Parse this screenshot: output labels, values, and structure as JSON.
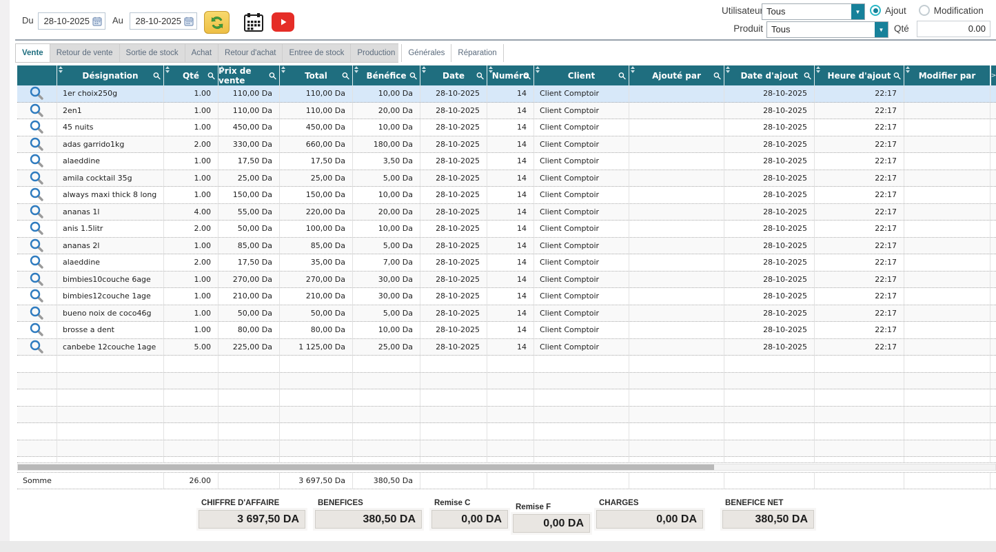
{
  "topbar": {
    "du_label": "Du",
    "au_label": "Au",
    "date_from": "28-10-2025",
    "date_to": "28-10-2025",
    "utilisateur_label": "Utilisateur",
    "utilisateur_value": "Tous",
    "produit_label": "Produit",
    "produit_value": "Tous",
    "ajout_label": "Ajout",
    "modification_label": "Modification",
    "ajout_selected": true,
    "qte_label": "Qté",
    "qte_value": "0.00"
  },
  "tabs": [
    {
      "label": "Vente",
      "active": true
    },
    {
      "label": "Retour de vente",
      "active": false
    },
    {
      "label": "Sortie de stock",
      "active": false
    },
    {
      "label": "Achat",
      "active": false
    },
    {
      "label": "Retour d'achat",
      "active": false
    },
    {
      "label": "Entree de stock",
      "active": false
    },
    {
      "label": "Production",
      "active": false
    },
    {
      "label": "Générales",
      "active": false
    },
    {
      "label": "Réparation",
      "active": false
    }
  ],
  "table": {
    "columns": [
      {
        "label": "",
        "magnifier": false
      },
      {
        "label": "Désignation",
        "magnifier": true
      },
      {
        "label": "Qté",
        "magnifier": true
      },
      {
        "label": "Prix de vente",
        "magnifier": true
      },
      {
        "label": "Total",
        "magnifier": true
      },
      {
        "label": "Bénéfice",
        "magnifier": true
      },
      {
        "label": "Date",
        "magnifier": true
      },
      {
        "label": "Numéro",
        "magnifier": true
      },
      {
        "label": "Client",
        "magnifier": true
      },
      {
        "label": "Ajouté par",
        "magnifier": true
      },
      {
        "label": "Date d'ajout",
        "magnifier": true
      },
      {
        "label": "Heure d'ajout",
        "magnifier": true
      },
      {
        "label": "Modifier par",
        "magnifier": false
      }
    ],
    "scroll_right_glyph": ">",
    "selected_row_index": 0,
    "rows": [
      [
        "1er choix250g",
        "1.00",
        "110,00 Da",
        "110,00 Da",
        "10,00 Da",
        "28-10-2025",
        "14",
        "Client Comptoir",
        "",
        "28-10-2025",
        "22:17",
        ""
      ],
      [
        "2en1",
        "1.00",
        "110,00 Da",
        "110,00 Da",
        "20,00 Da",
        "28-10-2025",
        "14",
        "Client Comptoir",
        "",
        "28-10-2025",
        "22:17",
        ""
      ],
      [
        "45 nuits",
        "1.00",
        "450,00 Da",
        "450,00 Da",
        "10,00 Da",
        "28-10-2025",
        "14",
        "Client Comptoir",
        "",
        "28-10-2025",
        "22:17",
        ""
      ],
      [
        "adas garrido1kg",
        "2.00",
        "330,00 Da",
        "660,00 Da",
        "180,00 Da",
        "28-10-2025",
        "14",
        "Client Comptoir",
        "",
        "28-10-2025",
        "22:17",
        ""
      ],
      [
        "alaeddine",
        "1.00",
        "17,50 Da",
        "17,50 Da",
        "3,50 Da",
        "28-10-2025",
        "14",
        "Client Comptoir",
        "",
        "28-10-2025",
        "22:17",
        ""
      ],
      [
        "amila cocktail 35g",
        "1.00",
        "25,00 Da",
        "25,00 Da",
        "5,00 Da",
        "28-10-2025",
        "14",
        "Client Comptoir",
        "",
        "28-10-2025",
        "22:17",
        ""
      ],
      [
        "always maxi thick 8 long",
        "1.00",
        "150,00 Da",
        "150,00 Da",
        "10,00 Da",
        "28-10-2025",
        "14",
        "Client Comptoir",
        "",
        "28-10-2025",
        "22:17",
        ""
      ],
      [
        "ananas 1l",
        "4.00",
        "55,00 Da",
        "220,00 Da",
        "20,00 Da",
        "28-10-2025",
        "14",
        "Client Comptoir",
        "",
        "28-10-2025",
        "22:17",
        ""
      ],
      [
        "anis 1.5litr",
        "2.00",
        "50,00 Da",
        "100,00 Da",
        "10,00 Da",
        "28-10-2025",
        "14",
        "Client Comptoir",
        "",
        "28-10-2025",
        "22:17",
        ""
      ],
      [
        "ananas 2l",
        "1.00",
        "85,00 Da",
        "85,00 Da",
        "5,00 Da",
        "28-10-2025",
        "14",
        "Client Comptoir",
        "",
        "28-10-2025",
        "22:17",
        ""
      ],
      [
        "alaeddine",
        "2.00",
        "17,50 Da",
        "35,00 Da",
        "7,00 Da",
        "28-10-2025",
        "14",
        "Client Comptoir",
        "",
        "28-10-2025",
        "22:17",
        ""
      ],
      [
        "bimbies10couche 6age",
        "1.00",
        "270,00 Da",
        "270,00 Da",
        "30,00 Da",
        "28-10-2025",
        "14",
        "Client Comptoir",
        "",
        "28-10-2025",
        "22:17",
        ""
      ],
      [
        "bimbies12couche 1age",
        "1.00",
        "210,00 Da",
        "210,00 Da",
        "30,00 Da",
        "28-10-2025",
        "14",
        "Client Comptoir",
        "",
        "28-10-2025",
        "22:17",
        ""
      ],
      [
        "bueno noix de coco46g",
        "1.00",
        "50,00 Da",
        "50,00 Da",
        "5,00 Da",
        "28-10-2025",
        "14",
        "Client Comptoir",
        "",
        "28-10-2025",
        "22:17",
        ""
      ],
      [
        "brosse a dent",
        "1.00",
        "80,00 Da",
        "80,00 Da",
        "10,00 Da",
        "28-10-2025",
        "14",
        "Client Comptoir",
        "",
        "28-10-2025",
        "22:17",
        ""
      ],
      [
        "canbebe 12couche 1age",
        "5.00",
        "225,00 Da",
        "1 125,00 Da",
        "25,00 Da",
        "28-10-2025",
        "14",
        "Client Comptoir",
        "",
        "28-10-2025",
        "22:17",
        ""
      ]
    ],
    "somme": {
      "label": "Somme",
      "qte": "26.00",
      "prix_de_vente": "",
      "total": "3 697,50 Da",
      "benefice": "380,50 Da"
    }
  },
  "footer": {
    "items": [
      {
        "label": "CHIFFRE D'AFFAIRE",
        "value": "3 697,50 DA"
      },
      {
        "label": "BENEFICES",
        "value": "380,50 DA"
      },
      {
        "label": "Remise C",
        "value": "0,00 DA"
      },
      {
        "label": "Remise F",
        "value": "0,00 DA"
      },
      {
        "label": "CHARGES",
        "value": "0,00 DA"
      },
      {
        "label": "BENEFICE NET",
        "value": "380,50 DA"
      }
    ]
  },
  "colors": {
    "header_teal": "#1f6e7f",
    "dropdown_teal": "#17819a",
    "radio_accent_cyan": "#2ab7c6",
    "selected_row_blue": "#d7e8f9",
    "sync_button_yellow": "#eebf45",
    "sync_arrows_green": "#3f9e3f",
    "youtube_red": "#e52d27",
    "footer_box_beige": "#e9e6e2"
  }
}
